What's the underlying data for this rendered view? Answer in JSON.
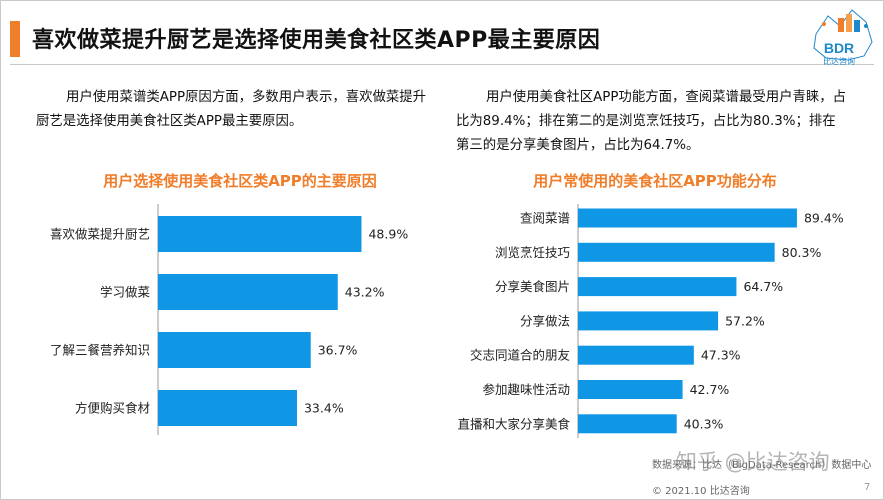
{
  "header": {
    "title": "喜欢做菜提升厨艺是选择使用美食社区类APP最主要原因"
  },
  "logo": {
    "name": "BDR",
    "subtitle": "比达咨询"
  },
  "left": {
    "paragraph": "用户使用菜谱类APP原因方面，多数用户表示，喜欢做菜提升厨艺是选择使用美食社区类APP最主要原因。"
  },
  "right": {
    "paragraph": "用户使用美食社区APP功能方面，查阅菜谱最受用户青睐，占比为89.4%；排在第二的是浏览烹饪技巧，占比为80.3%；排在第三的是分享美食图片，占比为64.7%。"
  },
  "chart_data": [
    {
      "type": "bar",
      "orientation": "horizontal",
      "title": "用户选择使用美食社区类APP的主要原因",
      "categories": [
        "喜欢做菜提升厨艺",
        "学习做菜",
        "了解三餐营养知识",
        "方便购买食材"
      ],
      "values": [
        48.9,
        43.2,
        36.7,
        33.4
      ],
      "value_labels": [
        "48.9%",
        "43.2%",
        "36.7%",
        "33.4%"
      ],
      "unit": "%",
      "xlim": [
        0,
        62
      ],
      "grid": false,
      "bar_color": "#0f97e6"
    },
    {
      "type": "bar",
      "orientation": "horizontal",
      "title": "用户常使用的美食社区APP功能分布",
      "categories": [
        "查阅菜谱",
        "浏览烹饪技巧",
        "分享美食图片",
        "分享做法",
        "交志同道合的朋友",
        "参加趣味性活动",
        "直播和大家分享美食"
      ],
      "values": [
        89.4,
        80.3,
        64.7,
        57.2,
        47.3,
        42.7,
        40.3
      ],
      "value_labels": [
        "89.4%",
        "80.3%",
        "64.7%",
        "57.2%",
        "47.3%",
        "42.7%",
        "40.3%"
      ],
      "unit": "%",
      "xlim": [
        0,
        98
      ],
      "grid": false,
      "bar_color": "#0f97e6"
    }
  ],
  "footer": {
    "source": "数据来源：比达（BigData-Research）数据中心",
    "copyright": "© 2021.10 比达咨询",
    "page": "7",
    "watermark": "知乎 @比达咨询"
  }
}
